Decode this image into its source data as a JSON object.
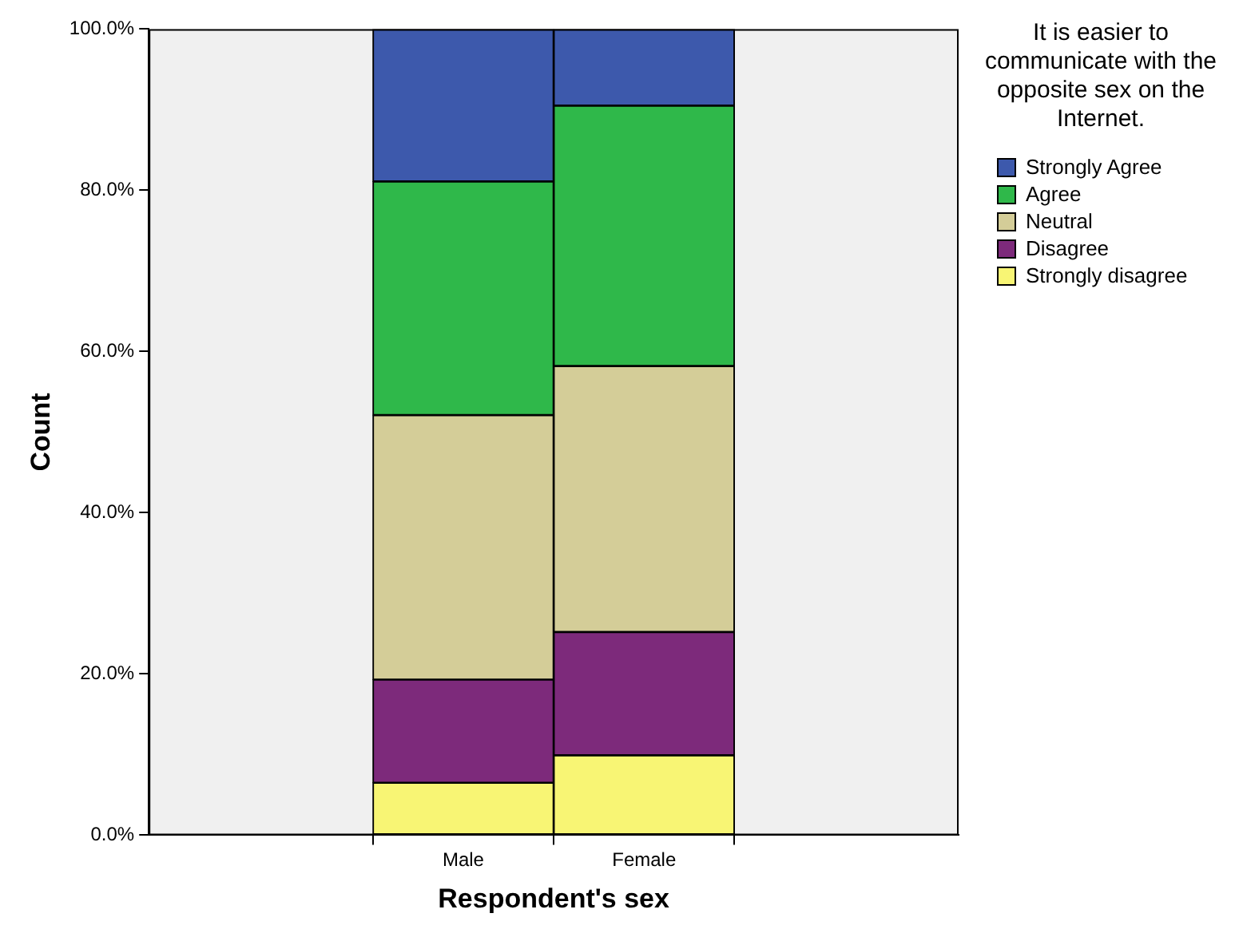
{
  "chart_data": {
    "type": "bar",
    "stacked": true,
    "xlabel": "Respondent's sex",
    "ylabel": "Count",
    "legend_title": "It is easier to communicate with the opposite sex on the Internet.",
    "legend": "top right",
    "grid": false,
    "categories": [
      "Male",
      "Female"
    ],
    "ylim": [
      0,
      100
    ],
    "yticks": [
      {
        "value": 0,
        "label": "0.0%"
      },
      {
        "value": 20,
        "label": "20.0%"
      },
      {
        "value": 40,
        "label": "40.0%"
      },
      {
        "value": 60,
        "label": "60.0%"
      },
      {
        "value": 80,
        "label": "80.0%"
      },
      {
        "value": 100,
        "label": "100.0%"
      }
    ],
    "series": [
      {
        "name": "Strongly disagree",
        "color": "#f8f574",
        "values": [
          6.5,
          9.9
        ]
      },
      {
        "name": "Disagree",
        "color": "#7d2a7b",
        "values": [
          12.8,
          15.3
        ]
      },
      {
        "name": "Neutral",
        "color": "#d4cd98",
        "values": [
          32.8,
          33.0
        ]
      },
      {
        "name": "Agree",
        "color": "#2fb84a",
        "values": [
          29.0,
          32.3
        ]
      },
      {
        "name": "Strongly Agree",
        "color": "#3d59ac",
        "values": [
          18.9,
          9.5
        ]
      }
    ]
  }
}
